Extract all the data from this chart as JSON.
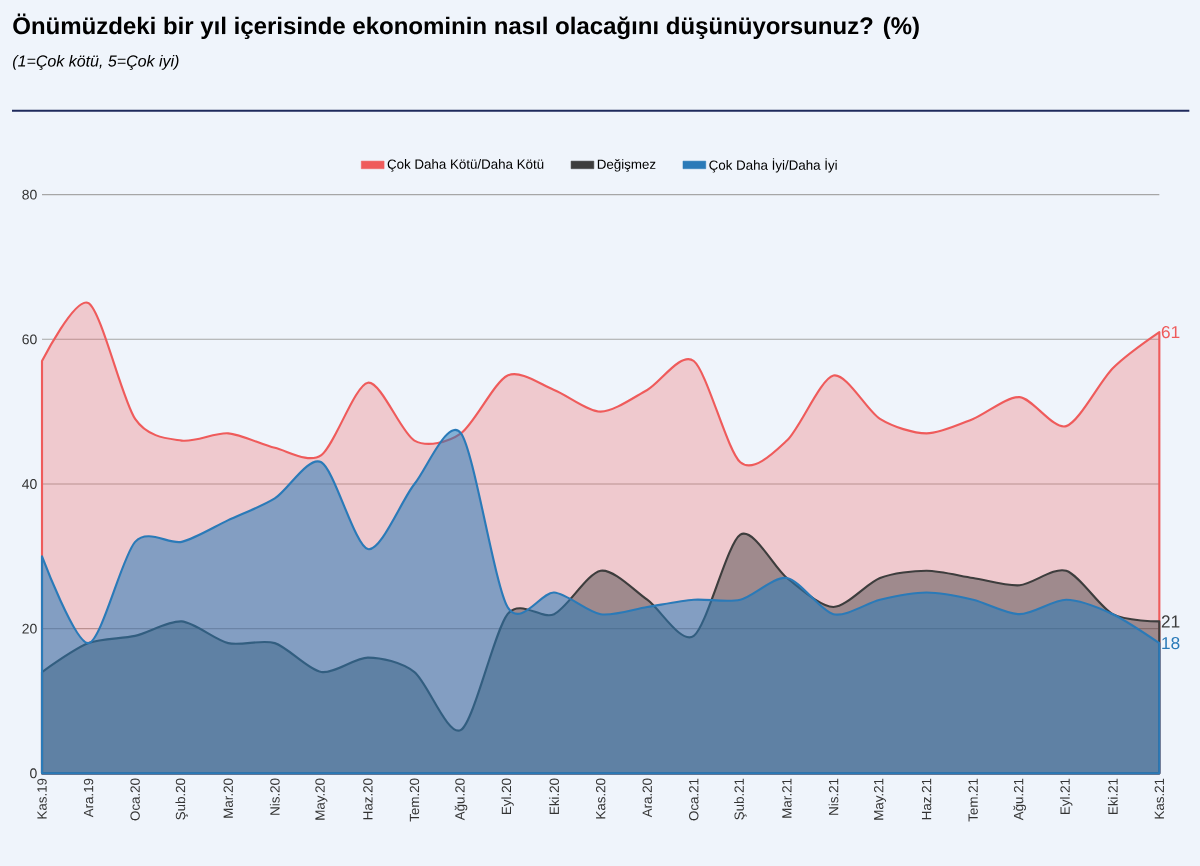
{
  "chart_data": {
    "type": "area",
    "title": "Önümüzdeki bir yıl içerisinde ekonominin nasıl olacağını düşünüyorsunuz? (%)",
    "subtitle": "(1=Çok kötü, 5=Çok iyi)",
    "categories": [
      "Kas.19",
      "Ara.19",
      "Oca.20",
      "Şub.20",
      "Mar.20",
      "Nis.20",
      "May.20",
      "Haz.20",
      "Tem.20",
      "Ağu.20",
      "Eyl.20",
      "Eki.20",
      "Kas.20",
      "Ara.20",
      "Oca.21",
      "Şub.21",
      "Mar.21",
      "Nis.21",
      "May.21",
      "Haz.21",
      "Tem.21",
      "Ağu.21",
      "Eyl.21",
      "Eki.21",
      "Kas.21"
    ],
    "series": [
      {
        "name": "Çok Daha Kötü/Daha Kötü",
        "color": "#ef5b5b",
        "values": [
          57,
          65,
          49,
          46,
          47,
          45,
          44,
          54,
          46,
          47,
          55,
          53,
          50,
          53,
          57,
          43,
          46,
          55,
          49,
          47,
          49,
          52,
          48,
          56,
          61
        ],
        "value_labels": [
          null,
          null,
          null,
          null,
          null,
          null,
          null,
          null,
          null,
          null,
          null,
          null,
          null,
          null,
          null,
          null,
          null,
          null,
          null,
          null,
          null,
          null,
          null,
          null,
          "61"
        ]
      },
      {
        "name": "Değişmez",
        "color": "#3d3d3d",
        "values": [
          14,
          18,
          19,
          21,
          18,
          18,
          14,
          16,
          14,
          6,
          22,
          22,
          28,
          24,
          19,
          33,
          27,
          23,
          27,
          28,
          27,
          26,
          28,
          22,
          21
        ],
        "value_labels": [
          null,
          null,
          null,
          null,
          null,
          null,
          null,
          null,
          null,
          null,
          null,
          null,
          null,
          null,
          null,
          null,
          null,
          null,
          null,
          null,
          null,
          null,
          null,
          null,
          "21"
        ]
      },
      {
        "name": "Çok Daha İyi/Daha İyi",
        "color": "#2a7ab8",
        "values": [
          30,
          18,
          32,
          32,
          35,
          38,
          43,
          31,
          40,
          47,
          23,
          25,
          22,
          23,
          24,
          24,
          27,
          22,
          24,
          25,
          24,
          22,
          24,
          22,
          18
        ],
        "value_labels": [
          null,
          null,
          null,
          null,
          null,
          null,
          null,
          null,
          null,
          null,
          null,
          null,
          null,
          null,
          null,
          null,
          null,
          null,
          null,
          null,
          null,
          null,
          null,
          null,
          "18"
        ]
      }
    ],
    "ylim": [
      0,
      80
    ],
    "yticks": [
      0,
      20,
      40,
      60,
      80
    ],
    "grid": "y",
    "legend": "top"
  }
}
